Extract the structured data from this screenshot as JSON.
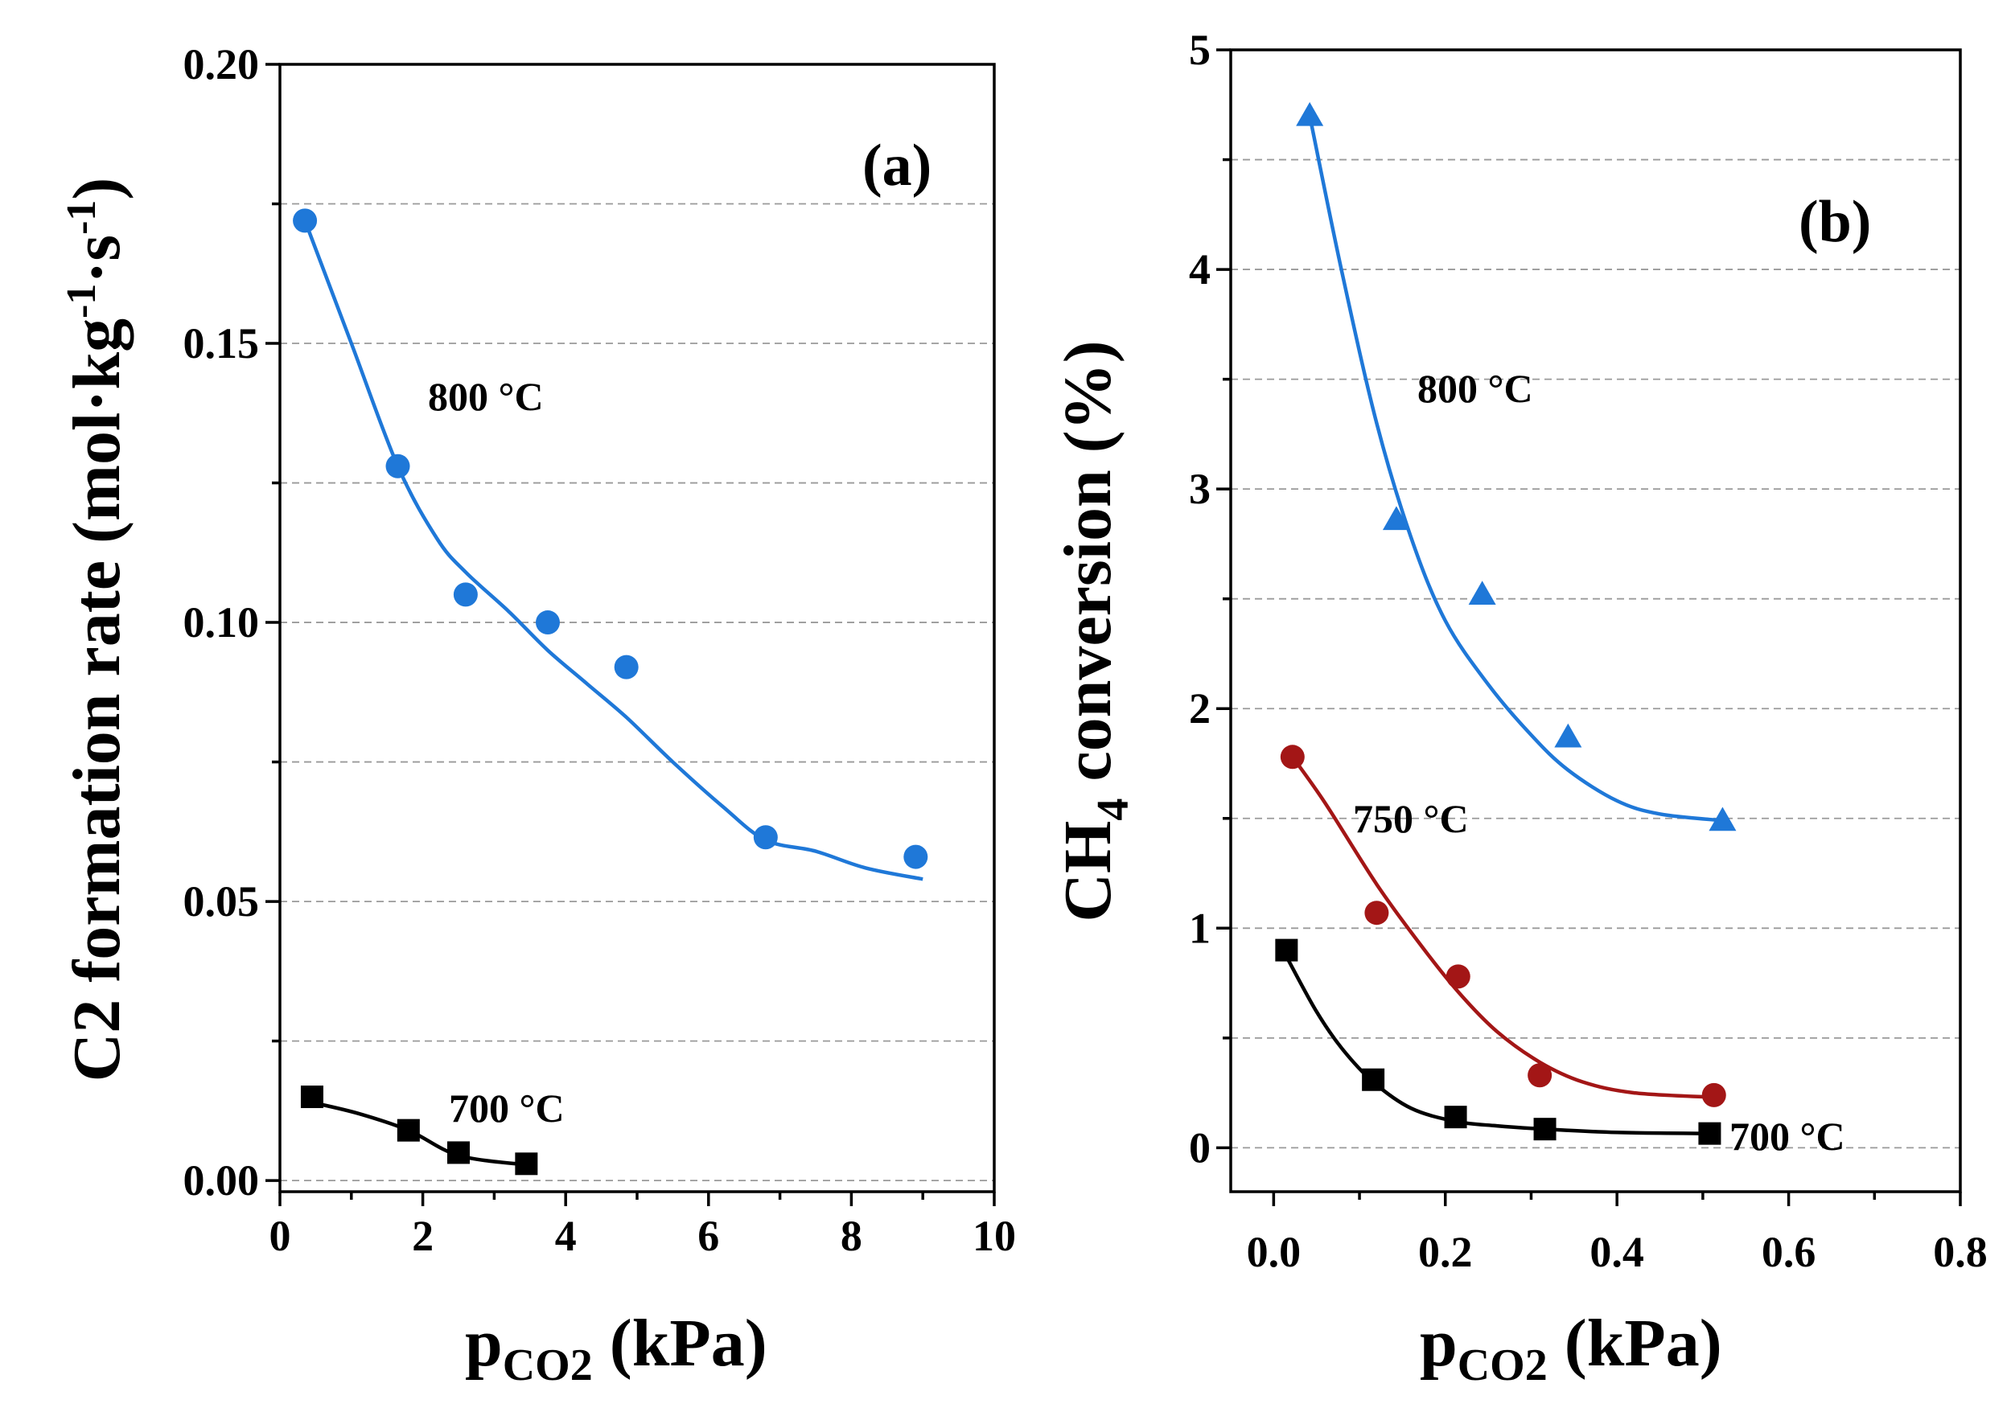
{
  "chart_data": [
    {
      "type": "scatter",
      "panel": "(a)",
      "xlabel": "p",
      "xlabel_sub": "CO2",
      "xlabel_unit": " (kPa)",
      "ylabel": "C2 formation rate (mol·kg",
      "ylabel_sup1": "-1",
      "ylabel_mid": "·s",
      "ylabel_sup2": "-1",
      "ylabel_end": ")",
      "xlim": [
        0,
        10
      ],
      "ylim": [
        -0.002,
        0.2
      ],
      "xticks": [
        0,
        2,
        4,
        6,
        8,
        10
      ],
      "xtick_labels": [
        "0",
        "2",
        "4",
        "6",
        "8",
        "10"
      ],
      "yticks": [
        0.0,
        0.05,
        0.1,
        0.15,
        0.2
      ],
      "ytick_labels": [
        "0.00",
        "0.05",
        "0.10",
        "0.15",
        "0.20"
      ],
      "grid_y": [
        0.0,
        0.025,
        0.05,
        0.075,
        0.1,
        0.125,
        0.15,
        0.175
      ],
      "series": [
        {
          "name": "800 °C",
          "color": "#1f78d8",
          "marker": "circle",
          "x": [
            0.35,
            1.65,
            2.6,
            3.75,
            4.85,
            6.8,
            8.9
          ],
          "y": [
            0.172,
            0.128,
            0.105,
            0.1,
            0.092,
            0.0615,
            0.058
          ],
          "fit_x": [
            0.35,
            1.0,
            1.65,
            2.2,
            2.6,
            3.2,
            3.75,
            4.3,
            4.85,
            5.5,
            6.2,
            6.8,
            7.5,
            8.2,
            9.0
          ],
          "fit_y": [
            0.172,
            0.15,
            0.128,
            0.115,
            0.109,
            0.102,
            0.095,
            0.089,
            0.083,
            0.075,
            0.067,
            0.061,
            0.059,
            0.056,
            0.054
          ]
        },
        {
          "name": "700 °C",
          "color": "#000000",
          "marker": "square",
          "x": [
            0.45,
            1.8,
            2.5,
            3.45
          ],
          "y": [
            0.015,
            0.009,
            0.005,
            0.003
          ],
          "fit_x": [
            0.45,
            1.1,
            1.8,
            2.5,
            3.45
          ],
          "fit_y": [
            0.014,
            0.012,
            0.009,
            0.0045,
            0.0028
          ]
        }
      ],
      "annotations": [
        "800 °C",
        "700 °C"
      ]
    },
    {
      "type": "scatter",
      "panel": "(b)",
      "xlabel": "p",
      "xlabel_sub": "CO2",
      "xlabel_unit": " (kPa)",
      "ylabel_pre": "CH",
      "ylabel_sub": "4",
      "ylabel_post": " conversion (%)",
      "xlim": [
        -0.05,
        0.8
      ],
      "ylim": [
        -0.2,
        5.0
      ],
      "xticks": [
        0.0,
        0.2,
        0.4,
        0.6,
        0.8
      ],
      "xtick_labels": [
        "0.0",
        "0.2",
        "0.4",
        "0.6",
        "0.8"
      ],
      "yticks": [
        0,
        1,
        2,
        3,
        4,
        5
      ],
      "ytick_labels": [
        "0",
        "1",
        "2",
        "3",
        "4",
        "5"
      ],
      "grid_y": [
        0,
        0.5,
        1,
        1.5,
        2,
        2.5,
        3,
        3.5,
        4,
        4.5
      ],
      "series": [
        {
          "name": "800 °C",
          "color": "#1f78d8",
          "marker": "triangle",
          "x": [
            0.042,
            0.143,
            0.243,
            0.343,
            0.523
          ],
          "y": [
            4.7,
            2.86,
            2.52,
            1.87,
            1.49
          ],
          "fit_x": [
            0.042,
            0.08,
            0.12,
            0.16,
            0.2,
            0.25,
            0.3,
            0.343,
            0.4,
            0.45,
            0.523
          ],
          "fit_y": [
            4.7,
            3.98,
            3.3,
            2.78,
            2.4,
            2.11,
            1.88,
            1.72,
            1.58,
            1.52,
            1.49
          ]
        },
        {
          "name": "750 °C",
          "color": "#a31616",
          "marker": "circle",
          "x": [
            0.022,
            0.12,
            0.215,
            0.31,
            0.513
          ],
          "y": [
            1.78,
            1.07,
            0.78,
            0.33,
            0.24
          ],
          "fit_x": [
            0.022,
            0.06,
            0.12,
            0.17,
            0.215,
            0.26,
            0.31,
            0.36,
            0.42,
            0.513
          ],
          "fit_y": [
            1.78,
            1.57,
            1.2,
            0.93,
            0.71,
            0.53,
            0.39,
            0.3,
            0.25,
            0.23
          ]
        },
        {
          "name": "700 °C",
          "color": "#000000",
          "marker": "square",
          "x": [
            0.015,
            0.116,
            0.212,
            0.316,
            0.508
          ],
          "y": [
            0.9,
            0.31,
            0.14,
            0.085,
            0.065
          ],
          "fit_x": [
            0.015,
            0.05,
            0.08,
            0.116,
            0.16,
            0.212,
            0.26,
            0.316,
            0.4,
            0.508
          ],
          "fit_y": [
            0.87,
            0.62,
            0.45,
            0.3,
            0.18,
            0.12,
            0.1,
            0.085,
            0.07,
            0.065
          ]
        }
      ],
      "annotations": [
        "800 °C",
        "750 °C",
        "700 °C"
      ]
    }
  ]
}
